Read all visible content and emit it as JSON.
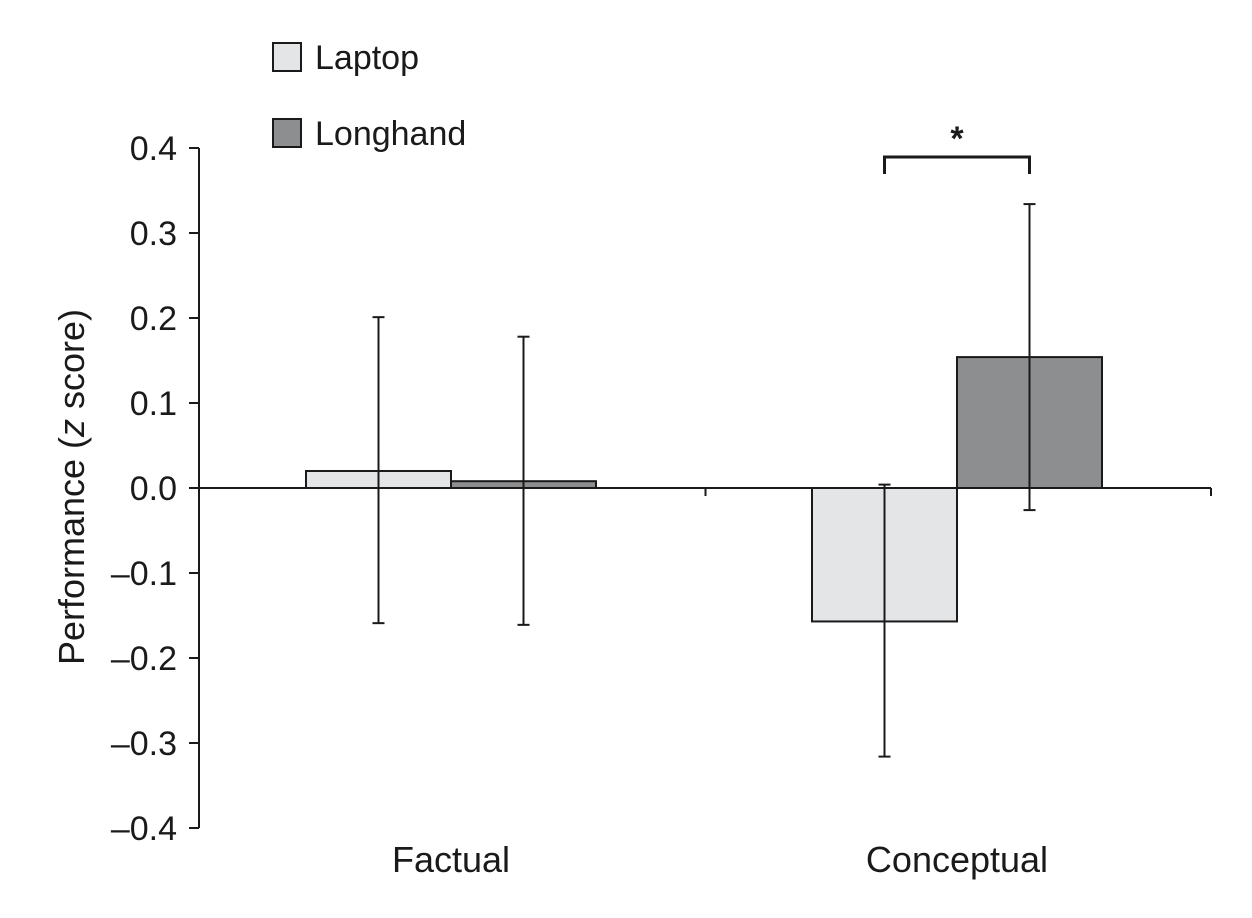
{
  "chart_data": {
    "type": "bar",
    "ylabel": "Performance (",
    "ylabel_italic": "z",
    "ylabel_rest": " score)",
    "ylim": [
      -0.4,
      0.4
    ],
    "yticks": [
      0.4,
      0.3,
      0.2,
      0.1,
      0.0,
      -0.1,
      -0.2,
      -0.3,
      -0.4
    ],
    "ytick_labels": [
      "0.4",
      "0.3",
      "0.2",
      "0.1",
      "0.0",
      "–0.1",
      "–0.2",
      "–0.3",
      "–0.4"
    ],
    "categories": [
      "Factual",
      "Conceptual"
    ],
    "series": [
      {
        "name": "Laptop",
        "color": "#e4e5e6",
        "values": [
          0.02,
          -0.157
        ],
        "err_high": [
          0.201,
          0.004
        ],
        "err_low": [
          -0.159,
          -0.316
        ]
      },
      {
        "name": "Longhand",
        "color": "#8d8e90",
        "values": [
          0.008,
          0.154
        ],
        "err_high": [
          0.178,
          0.334
        ],
        "err_low": [
          -0.161,
          -0.026
        ]
      }
    ],
    "legend": {
      "position": "top-left"
    },
    "grid": false,
    "annotations": [
      {
        "text": "*",
        "category": "Conceptual",
        "type": "significance-bracket"
      }
    ]
  }
}
